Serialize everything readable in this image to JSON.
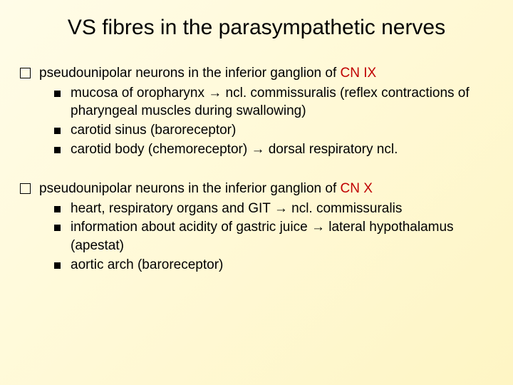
{
  "title": "VS fibres in the parasympathetic nerves",
  "block1": {
    "lead_pre": "pseudounipolar neurons in the inferior ganglion of ",
    "lead_hl": "CN IX",
    "items": [
      "mucosa of oropharynx → ncl. commissuralis (reflex contractions of pharyngeal muscles during swallowing)",
      "carotid sinus (baroreceptor)",
      "carotid body (chemoreceptor) → dorsal respiratory ncl."
    ]
  },
  "block2": {
    "lead_pre": "pseudounipolar neurons in the inferior ganglion of ",
    "lead_hl": "CN X",
    "items": [
      "heart, respiratory organs and GIT → ncl. commissuralis",
      "information about acidity of gastric juice → lateral hypothalamus (apestat)",
      "aortic arch (baroreceptor)"
    ]
  },
  "style": {
    "title_fontsize": 30,
    "body_fontsize": 19,
    "highlight_color": "#c00000",
    "text_color": "#000000",
    "bg_gradient_from": "#fffce8",
    "bg_gradient_to": "#fef5c4"
  }
}
